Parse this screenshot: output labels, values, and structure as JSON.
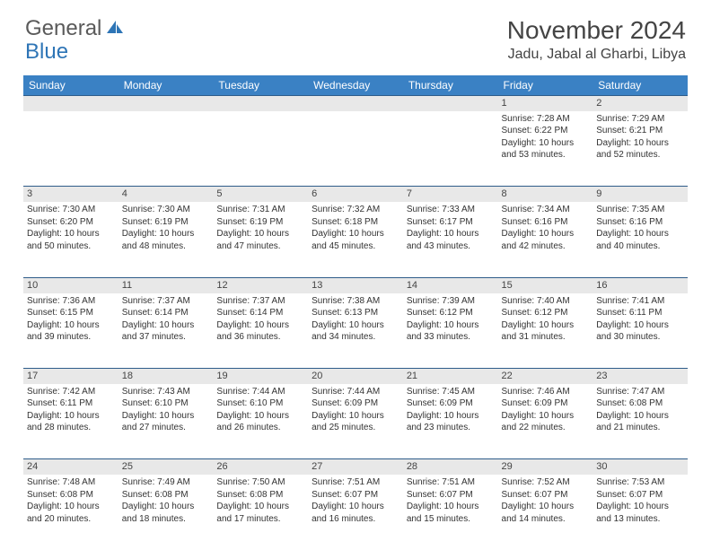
{
  "logo": {
    "word1": "General",
    "word2": "Blue"
  },
  "title": "November 2024",
  "location": "Jadu, Jabal al Gharbi, Libya",
  "colors": {
    "header_bg": "#3a81c4",
    "row_border": "#2e5c8a",
    "daynum_bg": "#e8e8e8",
    "logo_gray": "#5a5a5a",
    "logo_blue": "#2e75b6"
  },
  "weekdays": [
    "Sunday",
    "Monday",
    "Tuesday",
    "Wednesday",
    "Thursday",
    "Friday",
    "Saturday"
  ],
  "weeks": [
    [
      null,
      null,
      null,
      null,
      null,
      {
        "n": "1",
        "sunrise": "7:28 AM",
        "sunset": "6:22 PM",
        "daylight": "10 hours and 53 minutes."
      },
      {
        "n": "2",
        "sunrise": "7:29 AM",
        "sunset": "6:21 PM",
        "daylight": "10 hours and 52 minutes."
      }
    ],
    [
      {
        "n": "3",
        "sunrise": "7:30 AM",
        "sunset": "6:20 PM",
        "daylight": "10 hours and 50 minutes."
      },
      {
        "n": "4",
        "sunrise": "7:30 AM",
        "sunset": "6:19 PM",
        "daylight": "10 hours and 48 minutes."
      },
      {
        "n": "5",
        "sunrise": "7:31 AM",
        "sunset": "6:19 PM",
        "daylight": "10 hours and 47 minutes."
      },
      {
        "n": "6",
        "sunrise": "7:32 AM",
        "sunset": "6:18 PM",
        "daylight": "10 hours and 45 minutes."
      },
      {
        "n": "7",
        "sunrise": "7:33 AM",
        "sunset": "6:17 PM",
        "daylight": "10 hours and 43 minutes."
      },
      {
        "n": "8",
        "sunrise": "7:34 AM",
        "sunset": "6:16 PM",
        "daylight": "10 hours and 42 minutes."
      },
      {
        "n": "9",
        "sunrise": "7:35 AM",
        "sunset": "6:16 PM",
        "daylight": "10 hours and 40 minutes."
      }
    ],
    [
      {
        "n": "10",
        "sunrise": "7:36 AM",
        "sunset": "6:15 PM",
        "daylight": "10 hours and 39 minutes."
      },
      {
        "n": "11",
        "sunrise": "7:37 AM",
        "sunset": "6:14 PM",
        "daylight": "10 hours and 37 minutes."
      },
      {
        "n": "12",
        "sunrise": "7:37 AM",
        "sunset": "6:14 PM",
        "daylight": "10 hours and 36 minutes."
      },
      {
        "n": "13",
        "sunrise": "7:38 AM",
        "sunset": "6:13 PM",
        "daylight": "10 hours and 34 minutes."
      },
      {
        "n": "14",
        "sunrise": "7:39 AM",
        "sunset": "6:12 PM",
        "daylight": "10 hours and 33 minutes."
      },
      {
        "n": "15",
        "sunrise": "7:40 AM",
        "sunset": "6:12 PM",
        "daylight": "10 hours and 31 minutes."
      },
      {
        "n": "16",
        "sunrise": "7:41 AM",
        "sunset": "6:11 PM",
        "daylight": "10 hours and 30 minutes."
      }
    ],
    [
      {
        "n": "17",
        "sunrise": "7:42 AM",
        "sunset": "6:11 PM",
        "daylight": "10 hours and 28 minutes."
      },
      {
        "n": "18",
        "sunrise": "7:43 AM",
        "sunset": "6:10 PM",
        "daylight": "10 hours and 27 minutes."
      },
      {
        "n": "19",
        "sunrise": "7:44 AM",
        "sunset": "6:10 PM",
        "daylight": "10 hours and 26 minutes."
      },
      {
        "n": "20",
        "sunrise": "7:44 AM",
        "sunset": "6:09 PM",
        "daylight": "10 hours and 25 minutes."
      },
      {
        "n": "21",
        "sunrise": "7:45 AM",
        "sunset": "6:09 PM",
        "daylight": "10 hours and 23 minutes."
      },
      {
        "n": "22",
        "sunrise": "7:46 AM",
        "sunset": "6:09 PM",
        "daylight": "10 hours and 22 minutes."
      },
      {
        "n": "23",
        "sunrise": "7:47 AM",
        "sunset": "6:08 PM",
        "daylight": "10 hours and 21 minutes."
      }
    ],
    [
      {
        "n": "24",
        "sunrise": "7:48 AM",
        "sunset": "6:08 PM",
        "daylight": "10 hours and 20 minutes."
      },
      {
        "n": "25",
        "sunrise": "7:49 AM",
        "sunset": "6:08 PM",
        "daylight": "10 hours and 18 minutes."
      },
      {
        "n": "26",
        "sunrise": "7:50 AM",
        "sunset": "6:08 PM",
        "daylight": "10 hours and 17 minutes."
      },
      {
        "n": "27",
        "sunrise": "7:51 AM",
        "sunset": "6:07 PM",
        "daylight": "10 hours and 16 minutes."
      },
      {
        "n": "28",
        "sunrise": "7:51 AM",
        "sunset": "6:07 PM",
        "daylight": "10 hours and 15 minutes."
      },
      {
        "n": "29",
        "sunrise": "7:52 AM",
        "sunset": "6:07 PM",
        "daylight": "10 hours and 14 minutes."
      },
      {
        "n": "30",
        "sunrise": "7:53 AM",
        "sunset": "6:07 PM",
        "daylight": "10 hours and 13 minutes."
      }
    ]
  ],
  "labels": {
    "sunrise": "Sunrise:",
    "sunset": "Sunset:",
    "daylight": "Daylight:"
  }
}
